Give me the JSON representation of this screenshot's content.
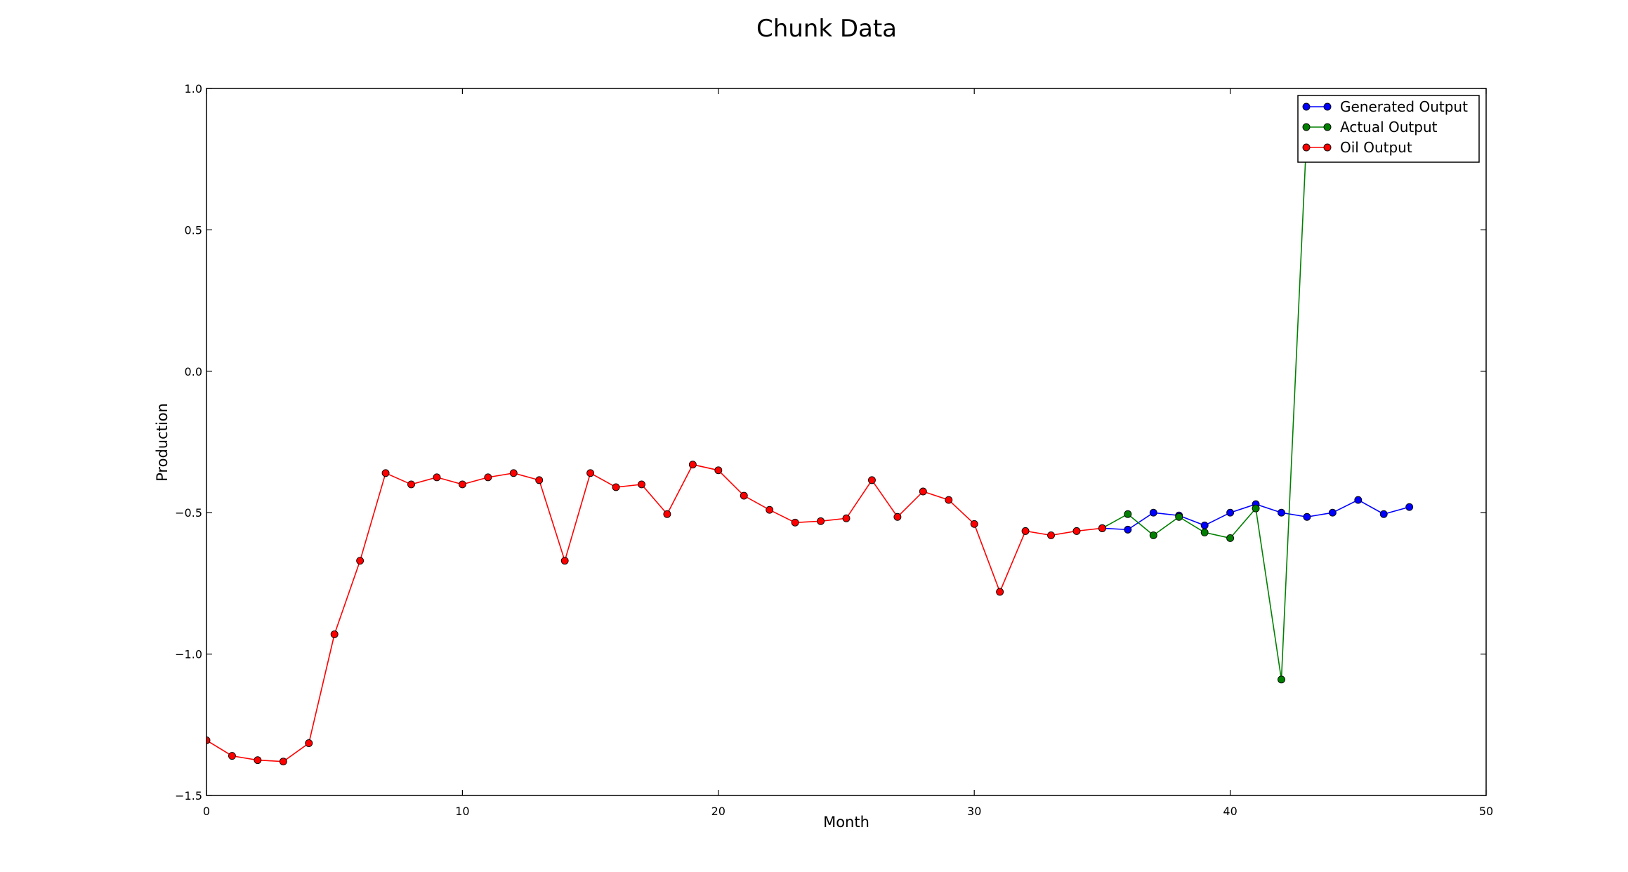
{
  "chart_data": {
    "type": "line",
    "title": "Chunk Data",
    "xlabel": "Month",
    "ylabel": "Production",
    "xlim": [
      0,
      50
    ],
    "ylim": [
      -1.5,
      1.0
    ],
    "xticks": [
      0,
      10,
      20,
      30,
      40,
      50
    ],
    "xtick_labels": [
      "0",
      "10",
      "20",
      "30",
      "40",
      "50"
    ],
    "yticks": [
      -1.5,
      -1.0,
      -0.5,
      0.0,
      0.5,
      1.0
    ],
    "ytick_labels": [
      "−1.5",
      "−1.0",
      "−0.5",
      "0.0",
      "0.5",
      "1.0"
    ],
    "grid": false,
    "legend_position": "top-right",
    "series": [
      {
        "name": "Generated Output",
        "color": "#0000ff",
        "x": [
          35,
          36,
          37,
          38,
          39,
          40,
          41,
          42,
          43,
          44,
          45,
          46,
          47
        ],
        "y": [
          -0.555,
          -0.56,
          -0.5,
          -0.51,
          -0.545,
          -0.5,
          -0.47,
          -0.5,
          -0.515,
          -0.5,
          -0.455,
          -0.505,
          -0.48
        ]
      },
      {
        "name": "Actual Output",
        "color": "#008000",
        "x": [
          35,
          36,
          37,
          38,
          39,
          40,
          41,
          42,
          43
        ],
        "y": [
          -0.555,
          -0.505,
          -0.58,
          -0.515,
          -0.57,
          -0.59,
          -0.485,
          -1.09,
          0.86
        ]
      },
      {
        "name": "Oil Output",
        "color": "#ff0000",
        "x": [
          0,
          1,
          2,
          3,
          4,
          5,
          6,
          7,
          8,
          9,
          10,
          11,
          12,
          13,
          14,
          15,
          16,
          17,
          18,
          19,
          20,
          21,
          22,
          23,
          24,
          25,
          26,
          27,
          28,
          29,
          30,
          31,
          32,
          33,
          34,
          35
        ],
        "y": [
          -1.305,
          -1.36,
          -1.375,
          -1.38,
          -1.315,
          -0.93,
          -0.67,
          -0.36,
          -0.4,
          -0.375,
          -0.4,
          -0.375,
          -0.36,
          -0.385,
          -0.67,
          -0.36,
          -0.41,
          -0.4,
          -0.505,
          -0.33,
          -0.35,
          -0.44,
          -0.49,
          -0.535,
          -0.53,
          -0.52,
          -0.385,
          -0.515,
          -0.425,
          -0.455,
          -0.54,
          -0.78,
          -0.565,
          -0.58,
          -0.565,
          -0.555
        ]
      }
    ]
  }
}
